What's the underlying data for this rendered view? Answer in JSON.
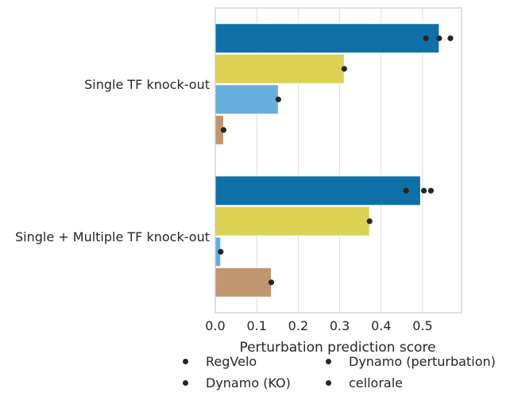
{
  "chart_data": {
    "type": "bar",
    "orientation": "horizontal",
    "title": "",
    "xlabel": "Perturbation prediction score",
    "ylabel": "",
    "xlim": [
      0,
      0.6
    ],
    "xticks": [
      "0.0",
      "0.1",
      "0.2",
      "0.3",
      "0.4",
      "0.5"
    ],
    "grid": true,
    "legend_placement": "bottom",
    "categories": [
      "Single TF knock-out",
      "Single + Multiple TF knock-out"
    ],
    "series": [
      {
        "name": "RegVelo",
        "color": "#0f70a7",
        "values": [
          0.54,
          0.495
        ],
        "points": [
          [
            0.508,
            0.54,
            0.567
          ],
          [
            0.46,
            0.503,
            0.52
          ]
        ]
      },
      {
        "name": "Dynamo (KO)",
        "color": "#dbd155",
        "values": [
          0.311,
          0.372
        ],
        "points": [
          [
            0.311
          ],
          [
            0.372
          ]
        ]
      },
      {
        "name": "Dynamo (perturbation)",
        "color": "#66aedc",
        "values": [
          0.152,
          0.013
        ],
        "points": [
          [
            0.152
          ],
          [
            0.013
          ]
        ]
      },
      {
        "name": "cellorale",
        "color": "#c09570",
        "values": [
          0.02,
          0.135
        ],
        "points": [
          [
            0.02
          ],
          [
            0.135
          ]
        ]
      }
    ]
  },
  "legend_items": [
    "RegVelo",
    "Dynamo (perturbation)",
    "Dynamo (KO)",
    "cellorale"
  ]
}
